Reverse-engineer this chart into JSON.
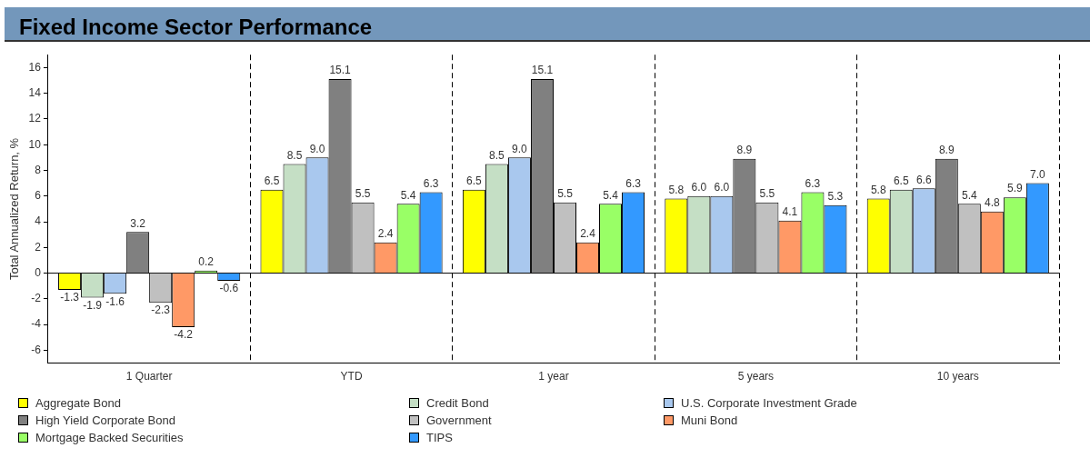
{
  "chart_data": {
    "type": "bar",
    "title": "Fixed Income Sector Performance",
    "ylabel": "Total Annualized Return, %",
    "categories": [
      "1 Quarter",
      "YTD",
      "1 year",
      "5 years",
      "10 years"
    ],
    "series": [
      {
        "name": "Aggregate Bond",
        "color": "#ffff00",
        "values": [
          -1.3,
          6.5,
          6.5,
          5.8,
          5.8
        ],
        "value_labels": [
          "-1.3",
          "6.5",
          "6.5",
          "5.8",
          "5.8"
        ]
      },
      {
        "name": "Credit Bond",
        "color": "#c5dfc5",
        "values": [
          -1.9,
          8.5,
          8.5,
          6.0,
          6.5
        ],
        "value_labels": [
          "-1.9",
          "8.5",
          "8.5",
          "6.0",
          "6.5"
        ]
      },
      {
        "name": "U.S. Corporate Investment Grade",
        "color": "#a9c8ee",
        "values": [
          -1.6,
          9.0,
          9.0,
          6.0,
          6.6
        ],
        "value_labels": [
          "-1.6",
          "9.0",
          "9.0",
          "6.0",
          "6.6"
        ]
      },
      {
        "name": "High Yield Corporate Bond",
        "color": "#808080",
        "values": [
          3.2,
          15.1,
          15.1,
          8.9,
          8.9
        ],
        "value_labels": [
          "3.2",
          "15.1",
          "15.1",
          "8.9",
          "8.9"
        ]
      },
      {
        "name": "Government",
        "color": "#c0c0c0",
        "values": [
          -2.3,
          5.5,
          5.5,
          5.5,
          5.4
        ],
        "value_labels": [
          "-2.3",
          "5.5",
          "5.5",
          "5.5",
          "5.4"
        ]
      },
      {
        "name": "Muni Bond",
        "color": "#ff9966",
        "values": [
          -4.2,
          2.4,
          2.4,
          4.1,
          4.8
        ],
        "value_labels": [
          "-4.2",
          "2.4",
          "2.4",
          "4.1",
          "4.8"
        ]
      },
      {
        "name": "Mortgage Backed Securities",
        "color": "#99ff66",
        "values": [
          0.2,
          5.4,
          5.4,
          6.3,
          5.9
        ],
        "value_labels": [
          "0.2",
          "5.4",
          "5.4",
          "6.3",
          "5.9"
        ]
      },
      {
        "name": "TIPS",
        "color": "#3399ff",
        "values": [
          -0.6,
          6.3,
          6.3,
          5.3,
          7.0
        ],
        "value_labels": [
          "-0.6",
          "6.3",
          "6.3",
          "5.3",
          "7.0"
        ]
      }
    ],
    "ylim": [
      -7,
      17
    ],
    "yticks": [
      -6,
      -4,
      -2,
      0,
      2,
      4,
      6,
      8,
      10,
      12,
      14,
      16
    ],
    "grid": "x",
    "legend": "bottom"
  }
}
